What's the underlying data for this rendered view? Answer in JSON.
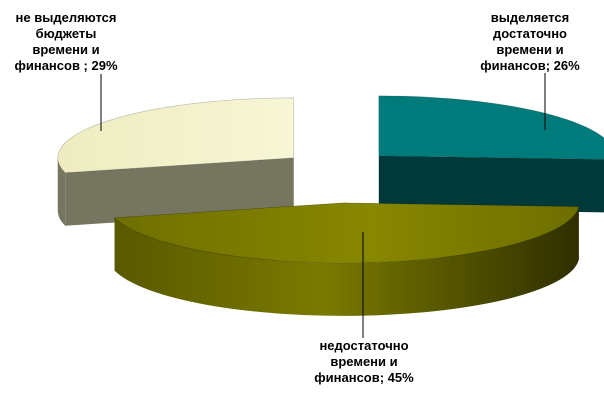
{
  "chart_data": {
    "type": "pie",
    "title": "",
    "style": "3D exploded pie",
    "legend": "none",
    "slices": [
      {
        "category_lines": [
          "выделяется",
          "достаточно",
          "времени и"
        ],
        "value_line": "финансов; 26%",
        "value": 26,
        "color_top": "#007b7b",
        "color_side": "#003939"
      },
      {
        "category_lines": [
          "недостаточно",
          "времени и"
        ],
        "value_line": "финансов; 45%",
        "value": 45,
        "color_top": "#7f7f00",
        "color_side": "#3d3d00"
      },
      {
        "category_lines": [
          "не выделяются",
          "бюджеты",
          "времени и"
        ],
        "value_line": "финансов ; 29%",
        "value": 29,
        "color_top": "#f2f0c6",
        "color_side": "#76755f"
      }
    ]
  }
}
